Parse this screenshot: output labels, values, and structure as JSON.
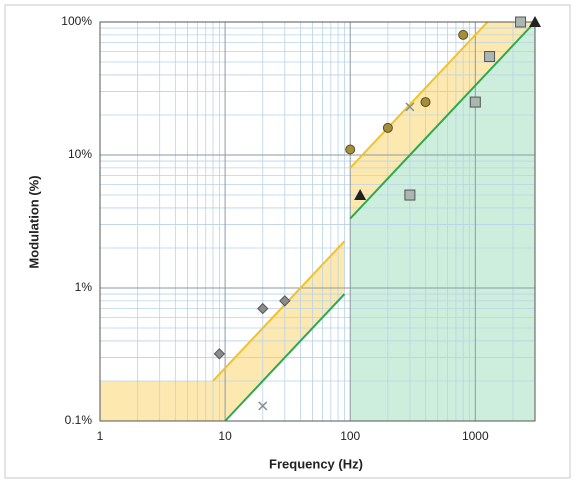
{
  "chart_data": {
    "type": "scatter",
    "xlabel": "Frequency (Hz)",
    "ylabel": "Modulation  (%)",
    "xscale": "log",
    "yscale": "log",
    "xlim": [
      1,
      3000
    ],
    "ylim": [
      0.1,
      100
    ],
    "xticks": [
      1,
      10,
      100,
      1000
    ],
    "yticks": [
      {
        "value": 0.1,
        "label": "0.1%"
      },
      {
        "value": 1,
        "label": "1%"
      },
      {
        "value": 10,
        "label": "10%"
      },
      {
        "value": 100,
        "label": "100%"
      }
    ],
    "grid": true,
    "areas": [
      {
        "color": "#fde9b0",
        "x": [
          1,
          8,
          90,
          90,
          10,
          1
        ],
        "values": [
          0.2,
          0.2,
          2.25,
          0.9,
          0.1,
          0.1
        ]
      },
      {
        "color": "#fde9b0",
        "x": [
          100,
          1250,
          3000,
          100
        ],
        "values": [
          8,
          100,
          100,
          3.33
        ]
      },
      {
        "color": "#cdeedd",
        "x": [
          100,
          3000,
          3000,
          100
        ],
        "values": [
          3.33,
          100,
          0.1,
          0.1
        ]
      }
    ],
    "lines": [
      {
        "color": "#f2c12e",
        "x": [
          8,
          90
        ],
        "values": [
          0.2,
          2.25
        ]
      },
      {
        "color": "#f2c12e",
        "x": [
          100,
          1250
        ],
        "values": [
          8,
          100
        ]
      },
      {
        "color": "#2ea84f",
        "x": [
          10,
          90
        ],
        "values": [
          0.1,
          0.9
        ]
      },
      {
        "color": "#2ea84f",
        "x": [
          100,
          3000
        ],
        "values": [
          3.33,
          100
        ]
      }
    ],
    "series": [
      {
        "marker": "diamond",
        "color": "#8c8c8c",
        "x": [
          9,
          20,
          30
        ],
        "values": [
          0.32,
          0.7,
          0.8
        ]
      },
      {
        "marker": "x",
        "color": "#7f9090",
        "x": [
          20,
          300
        ],
        "values": [
          0.13,
          23
        ]
      },
      {
        "marker": "circle",
        "color": "#a48d3c",
        "x": [
          100,
          200,
          400,
          800
        ],
        "values": [
          11,
          16,
          25,
          80
        ]
      },
      {
        "marker": "triangle",
        "color": "#222222",
        "x": [
          120,
          3000
        ],
        "values": [
          5,
          100
        ]
      },
      {
        "marker": "square",
        "color": "#a9b6b1",
        "x": [
          300,
          1000,
          1300,
          2300
        ],
        "values": [
          5,
          25,
          55,
          100
        ]
      }
    ]
  }
}
